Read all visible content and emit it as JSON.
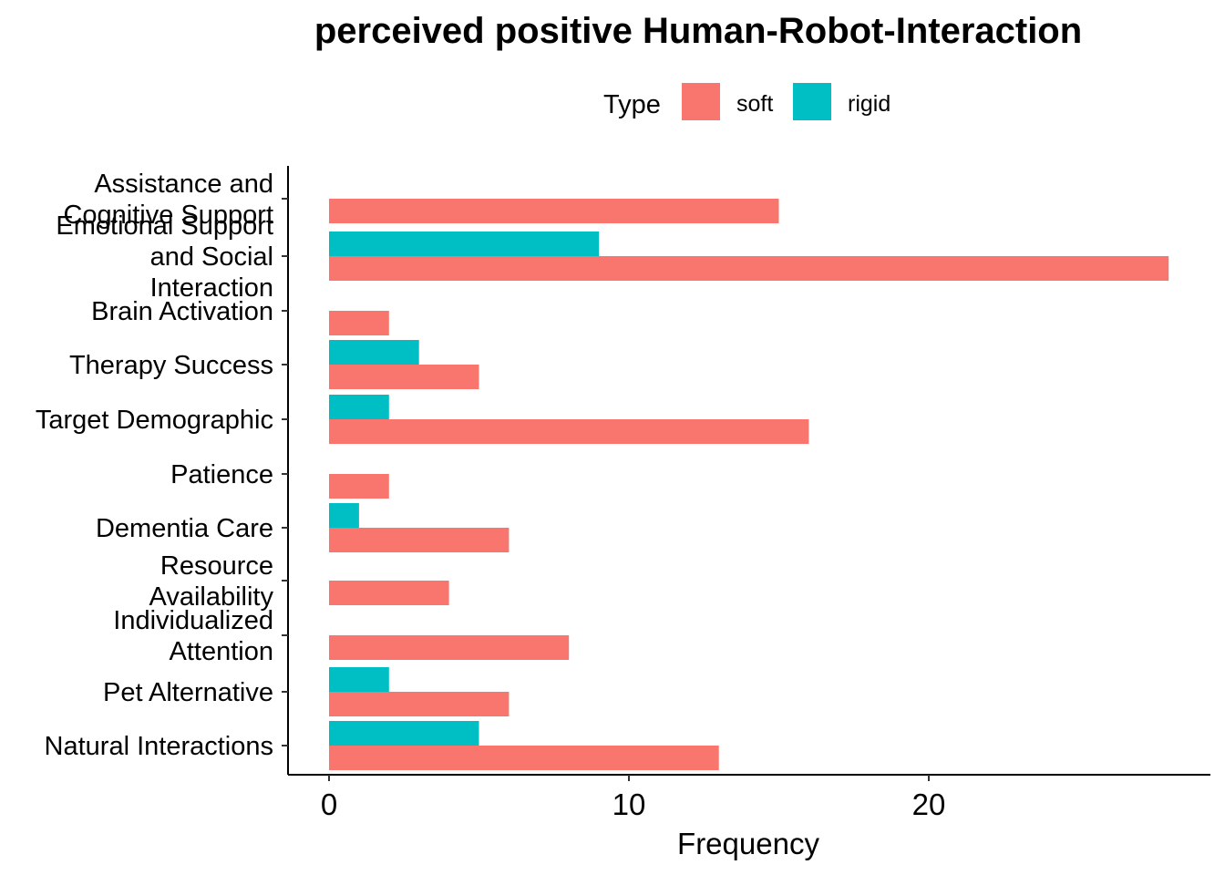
{
  "chart_data": {
    "type": "bar",
    "orientation": "horizontal",
    "title": "perceived positive Human-Robot-Interaction",
    "xlabel": "Frequency",
    "ylabel": "",
    "xlim": [
      -1.4,
      29.4
    ],
    "xticks": [
      0,
      10,
      20
    ],
    "grid": false,
    "legend": {
      "title": "Type",
      "position": "top"
    },
    "categories": [
      "Assistance and Cognitive Support",
      "Emotional Support and Social Interaction",
      "Brain Activation",
      "Therapy Success",
      "Target Demographic",
      "Patience",
      "Dementia Care",
      "Resource Availability",
      "Individualized Attention",
      "Pet Alternative",
      "Natural Interactions"
    ],
    "category_lines": [
      [
        "Assistance and",
        "Cognitive Support"
      ],
      [
        "Emotional Support",
        "and Social",
        "Interaction"
      ],
      [
        "Brain Activation"
      ],
      [
        "Therapy Success"
      ],
      [
        "Target Demographic"
      ],
      [
        "Patience"
      ],
      [
        "Dementia Care"
      ],
      [
        "Resource",
        "Availability"
      ],
      [
        "Individualized",
        "Attention"
      ],
      [
        "Pet Alternative"
      ],
      [
        "Natural Interactions"
      ]
    ],
    "series": [
      {
        "name": "soft",
        "color": "#F8766D",
        "values": [
          15,
          28,
          2,
          5,
          16,
          2,
          6,
          4,
          8,
          6,
          13
        ]
      },
      {
        "name": "rigid",
        "color": "#00BFC4",
        "values": [
          0,
          9,
          0,
          3,
          2,
          0,
          1,
          0,
          0,
          2,
          5
        ]
      }
    ]
  }
}
